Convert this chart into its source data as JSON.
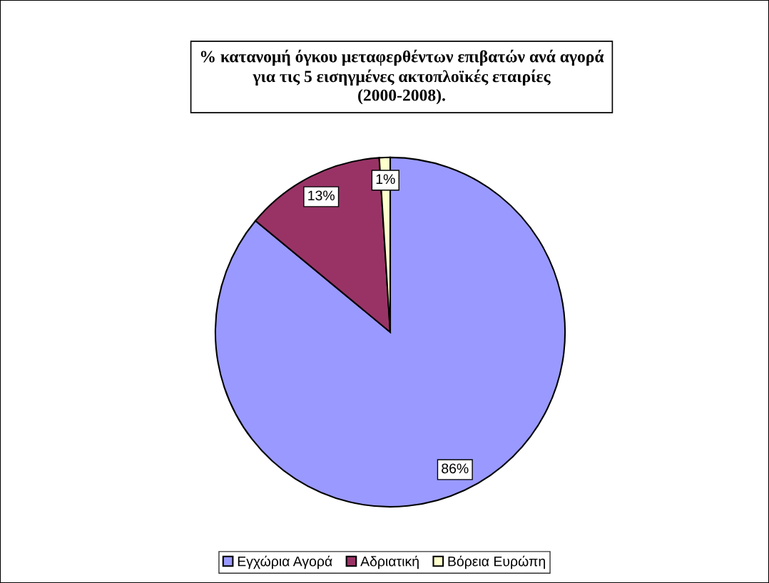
{
  "chart_data": {
    "type": "pie",
    "title": "% κατανομή όγκου μεταφερθέντων επιβατών ανά αγορά\nγια τις 5 εισηγμένες ακτοπλοϊκές εταιρίες\n(2000-2008).",
    "categories": [
      "Εγχώρια Αγορά",
      "Αδριατική",
      "Βόρεια Ευρώπη"
    ],
    "values": [
      86,
      13,
      1
    ],
    "colors": [
      "#9999ff",
      "#993366",
      "#ffffcc"
    ],
    "value_labels": [
      "86%",
      "13%",
      "1%"
    ],
    "legend": "bottom"
  }
}
